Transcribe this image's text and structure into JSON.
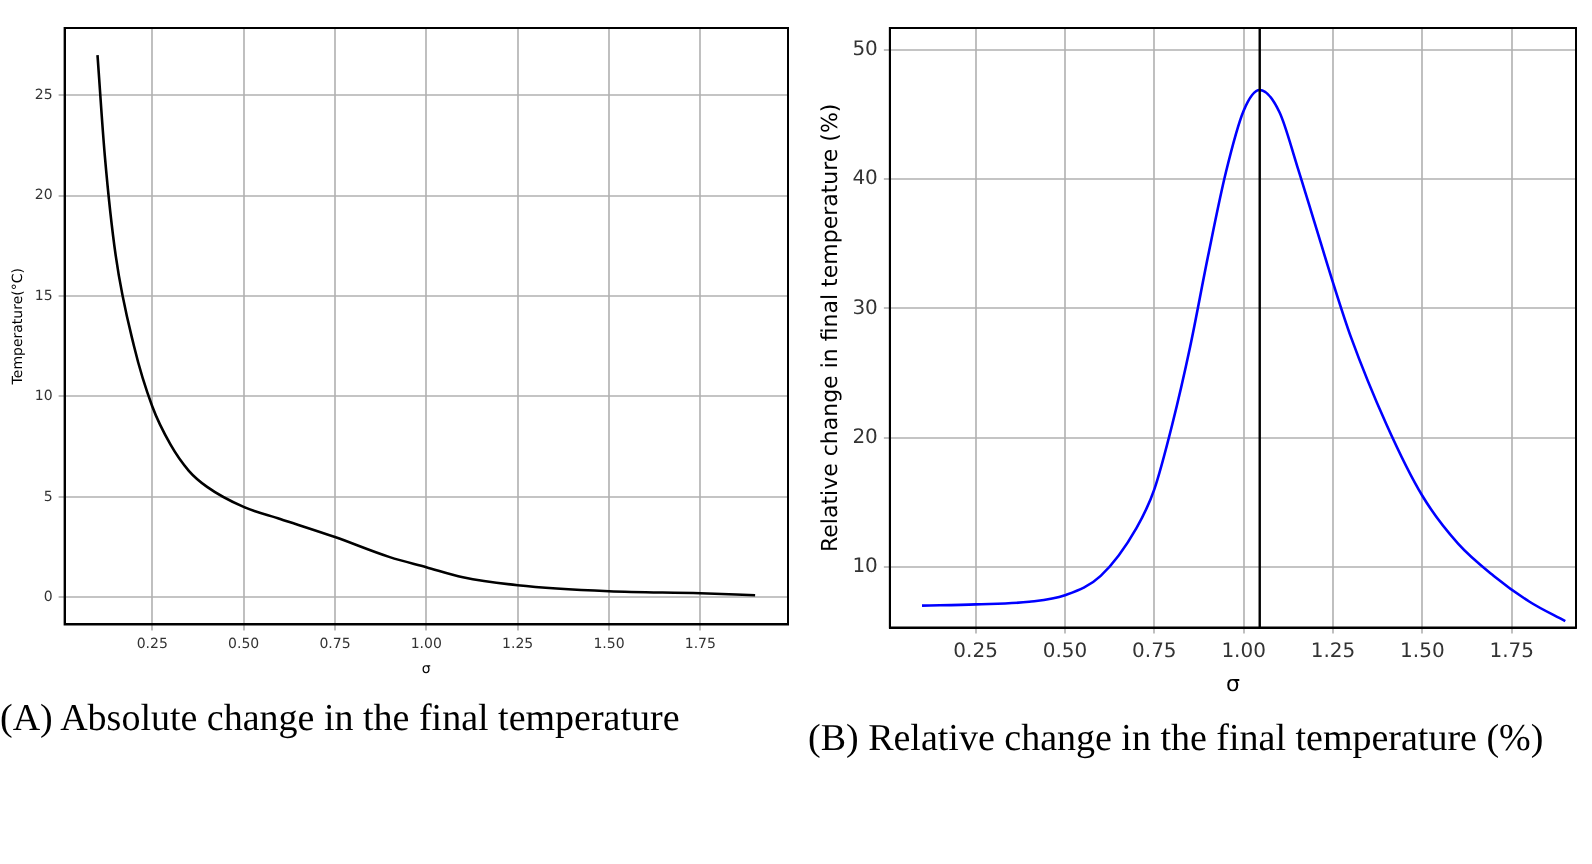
{
  "chart_data": [
    {
      "type": "line",
      "title": "(A) Absolute change in the final temperature",
      "xlabel": "σ",
      "ylabel": "Temperature(°C)",
      "x": [
        0.1,
        0.12,
        0.15,
        0.2,
        0.25,
        0.3,
        0.35,
        0.4,
        0.5,
        0.6,
        0.75,
        0.9,
        1.0,
        1.1,
        1.25,
        1.5,
        1.75,
        1.9
      ],
      "series": [
        {
          "color": "#000000",
          "values": [
            27.0,
            22,
            17,
            12.5,
            9.5,
            7.6,
            6.3,
            5.5,
            4.5,
            3.9,
            3.0,
            2.0,
            1.5,
            1.0,
            0.6,
            0.3,
            0.2,
            0.1
          ]
        }
      ],
      "xlim": [
        0.01,
        1.99
      ],
      "ylim": [
        -1.35,
        28.35
      ],
      "xticks": [
        0.25,
        {
          "value": 0.5,
          "label": "0.50"
        },
        0.75,
        {
          "value": 1,
          "label": "1.00"
        },
        1.25,
        {
          "value": 1.5,
          "label": "1.50"
        },
        1.75
      ],
      "yticks": [
        0,
        5,
        10,
        15,
        20,
        25
      ],
      "grid": true
    },
    {
      "type": "line",
      "title": "(B) Relative change in the final temperature (%)",
      "xlabel": "σ",
      "ylabel": "Relative change in final temperature (%)",
      "x": [
        0.1,
        0.25,
        0.4,
        0.5,
        0.6,
        0.7,
        0.75,
        0.8,
        0.85,
        0.9,
        0.95,
        1.0,
        1.045,
        1.1,
        1.15,
        1.2,
        1.25,
        1.3,
        1.4,
        1.5,
        1.6,
        1.7,
        1.8,
        1.9
      ],
      "series": [
        {
          "color": "#0000ff",
          "values": [
            7.0,
            7.1,
            7.3,
            7.8,
            9.3,
            13,
            16,
            21,
            27,
            34,
            40.5,
            45.3,
            46.9,
            45.2,
            41,
            36.5,
            32,
            27.8,
            21,
            15.5,
            11.8,
            9.3,
            7.3,
            5.8
          ]
        }
      ],
      "xlim": [
        0.01,
        1.93
      ],
      "ylim": [
        5.3,
        51.7
      ],
      "xticks": [
        0.25,
        {
          "value": 0.5,
          "label": "0.50"
        },
        0.75,
        {
          "value": 1,
          "label": "1.00"
        },
        1.25,
        {
          "value": 1.5,
          "label": "1.50"
        },
        1.75
      ],
      "yticks": [
        10,
        20,
        30,
        40,
        50
      ],
      "grid": true,
      "ref_lines": [
        {
          "axis": "x",
          "value": 1.045,
          "color": "#000000"
        }
      ]
    }
  ]
}
